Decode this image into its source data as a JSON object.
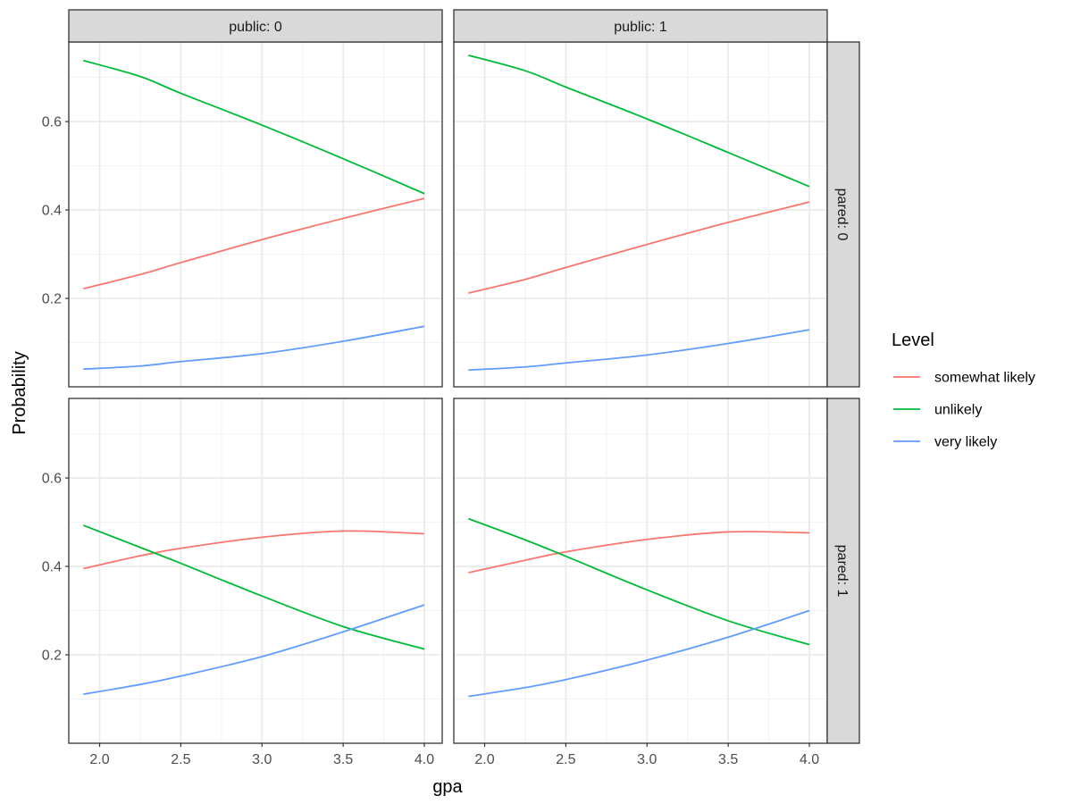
{
  "chart_data": {
    "type": "line",
    "facet_col_labels": [
      "public: 0",
      "public: 1"
    ],
    "facet_row_labels": [
      "pared: 0",
      "pared: 1"
    ],
    "xlabel": "gpa",
    "ylabel": "Probability",
    "xlim": [
      1.81,
      4.11
    ],
    "ylim": [
      0.0,
      0.78
    ],
    "x_ticks": [
      2.0,
      2.5,
      3.0,
      3.5,
      4.0
    ],
    "x_tick_labels": [
      "2.0",
      "2.5",
      "3.0",
      "3.5",
      "4.0"
    ],
    "y_ticks": [
      0.2,
      0.4,
      0.6
    ],
    "y_tick_labels": [
      "0.2",
      "0.4",
      "0.6"
    ],
    "grid": true,
    "legend": {
      "title": "Level",
      "position": "right",
      "entries": [
        "somewhat likely",
        "unlikely",
        "very likely"
      ]
    },
    "colors": {
      "somewhat likely": "#F8766D",
      "unlikely": "#00BA38",
      "very likely": "#619CFF"
    },
    "x": [
      1.9,
      2.25,
      2.5,
      3.0,
      3.5,
      4.0
    ],
    "panels": [
      {
        "row": 0,
        "col": 0,
        "series": [
          {
            "name": "somewhat likely",
            "values": [
              0.222,
              0.254,
              0.281,
              0.333,
              0.381,
              0.426
            ]
          },
          {
            "name": "unlikely",
            "values": [
              0.738,
              0.702,
              0.664,
              0.592,
              0.516,
              0.437
            ]
          },
          {
            "name": "very likely",
            "values": [
              0.04,
              0.047,
              0.057,
              0.075,
              0.103,
              0.137
            ]
          }
        ]
      },
      {
        "row": 0,
        "col": 1,
        "series": [
          {
            "name": "somewhat likely",
            "values": [
              0.212,
              0.243,
              0.27,
              0.322,
              0.372,
              0.418
            ]
          },
          {
            "name": "unlikely",
            "values": [
              0.75,
              0.715,
              0.678,
              0.606,
              0.53,
              0.453
            ]
          },
          {
            "name": "very likely",
            "values": [
              0.038,
              0.045,
              0.054,
              0.072,
              0.098,
              0.129
            ]
          }
        ]
      },
      {
        "row": 1,
        "col": 0,
        "series": [
          {
            "name": "somewhat likely",
            "values": [
              0.395,
              0.424,
              0.441,
              0.466,
              0.48,
              0.474
            ]
          },
          {
            "name": "unlikely",
            "values": [
              0.493,
              0.443,
              0.407,
              0.333,
              0.264,
              0.213
            ]
          },
          {
            "name": "very likely",
            "values": [
              0.111,
              0.133,
              0.152,
              0.196,
              0.252,
              0.313
            ]
          }
        ]
      },
      {
        "row": 1,
        "col": 1,
        "series": [
          {
            "name": "somewhat likely",
            "values": [
              0.386,
              0.414,
              0.433,
              0.461,
              0.478,
              0.476
            ]
          },
          {
            "name": "unlikely",
            "values": [
              0.508,
              0.46,
              0.423,
              0.347,
              0.277,
              0.223
            ]
          },
          {
            "name": "very likely",
            "values": [
              0.106,
              0.126,
              0.144,
              0.188,
              0.24,
              0.3
            ]
          }
        ]
      }
    ]
  }
}
